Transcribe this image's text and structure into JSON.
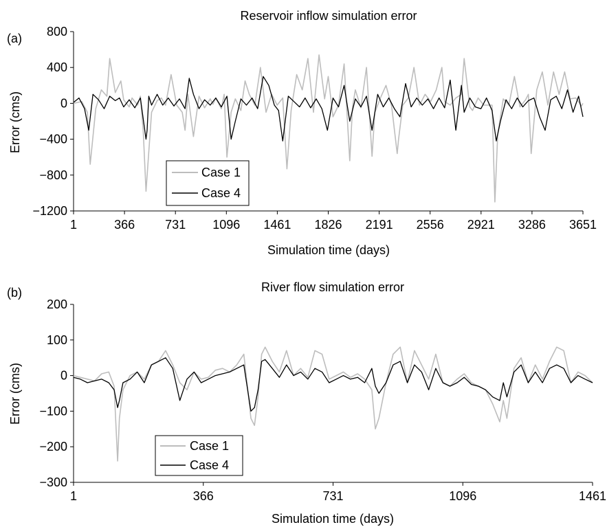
{
  "chart_data": [
    {
      "panel_label": "(a)",
      "type": "line",
      "title": "Reservoir inflow simulation error",
      "xlabel": "Simulation time (days)",
      "ylabel": "Error (cms)",
      "xlim": [
        1,
        3651
      ],
      "ylim": [
        -1200,
        800
      ],
      "xticks": [
        1,
        366,
        731,
        1096,
        1461,
        1826,
        2191,
        2556,
        2921,
        3286,
        3651
      ],
      "yticks": [
        -1200,
        -800,
        -400,
        0,
        400,
        800
      ],
      "ytick_labels": [
        "−1200",
        "−800",
        "−400",
        "0",
        "400",
        "800"
      ],
      "legend": {
        "position": "lower-left",
        "entries": [
          "Case 1",
          "Case 4"
        ]
      },
      "colors": {
        "case1": "#bdbdbd",
        "case4": "#000000"
      },
      "series": [
        {
          "name": "Case 1",
          "x": [
            1,
            60,
            100,
            120,
            160,
            200,
            240,
            260,
            300,
            340,
            360,
            400,
            420,
            460,
            480,
            500,
            520,
            560,
            600,
            630,
            660,
            700,
            740,
            780,
            800,
            820,
            860,
            900,
            940,
            980,
            1000,
            1020,
            1060,
            1080,
            1100,
            1130,
            1160,
            1200,
            1230,
            1260,
            1300,
            1340,
            1380,
            1420,
            1460,
            1500,
            1530,
            1560,
            1600,
            1640,
            1680,
            1720,
            1760,
            1800,
            1826,
            1860,
            1900,
            1940,
            1980,
            2000,
            2020,
            2060,
            2100,
            2140,
            2160,
            2180,
            2200,
            2240,
            2280,
            2320,
            2330,
            2360,
            2400,
            2440,
            2480,
            2520,
            2560,
            2600,
            2640,
            2660,
            2700,
            2740,
            2780,
            2800,
            2840,
            2860,
            2900,
            2940,
            3000,
            3020,
            3040,
            3080,
            3120,
            3160,
            3200,
            3240,
            3260,
            3280,
            3320,
            3360,
            3400,
            3440,
            3480,
            3520,
            3560,
            3600,
            3640,
            3651
          ],
          "y": [
            0,
            20,
            -100,
            -680,
            -60,
            150,
            80,
            500,
            120,
            250,
            40,
            -40,
            60,
            -20,
            80,
            -300,
            -980,
            -100,
            30,
            60,
            -20,
            320,
            -20,
            -100,
            -300,
            100,
            -370,
            80,
            -50,
            50,
            -10,
            60,
            -60,
            100,
            -600,
            -100,
            50,
            -80,
            250,
            100,
            -20,
            400,
            -100,
            100,
            -20,
            60,
            -730,
            -80,
            320,
            150,
            500,
            -100,
            540,
            50,
            300,
            -150,
            -20,
            440,
            -640,
            -40,
            150,
            -50,
            400,
            -590,
            -100,
            -20,
            60,
            200,
            -30,
            -560,
            -400,
            -20,
            60,
            400,
            -20,
            100,
            20,
            150,
            400,
            20,
            -20,
            60,
            100,
            500,
            -40,
            -80,
            60,
            -20,
            -20,
            -1100,
            -350,
            50,
            -20,
            300,
            -40,
            40,
            100,
            -560,
            150,
            350,
            -20,
            350,
            100,
            350,
            50,
            60,
            -30,
            0
          ]
        },
        {
          "name": "Case 4",
          "x": [
            1,
            40,
            80,
            110,
            140,
            180,
            220,
            260,
            300,
            330,
            360,
            400,
            440,
            480,
            520,
            528,
            540,
            560,
            600,
            640,
            680,
            720,
            760,
            800,
            830,
            860,
            900,
            940,
            980,
            1020,
            1060,
            1100,
            1130,
            1160,
            1200,
            1240,
            1280,
            1320,
            1360,
            1400,
            1440,
            1470,
            1500,
            1540,
            1580,
            1620,
            1660,
            1700,
            1740,
            1780,
            1820,
            1860,
            1900,
            1940,
            1980,
            2020,
            2060,
            2100,
            2140,
            2180,
            2220,
            2260,
            2300,
            2340,
            2380,
            2420,
            2460,
            2500,
            2540,
            2580,
            2620,
            2660,
            2700,
            2740,
            2780,
            2800,
            2840,
            2880,
            2920,
            2960,
            3000,
            3030,
            3060,
            3100,
            3140,
            3180,
            3220,
            3260,
            3300,
            3340,
            3380,
            3420,
            3460,
            3500,
            3540,
            3580,
            3620,
            3651
          ],
          "y": [
            10,
            60,
            -60,
            -300,
            100,
            40,
            -60,
            80,
            30,
            60,
            -40,
            40,
            -50,
            60,
            -400,
            -300,
            80,
            -20,
            100,
            -20,
            60,
            -30,
            50,
            -60,
            280,
            100,
            -60,
            40,
            -20,
            60,
            -40,
            80,
            -400,
            -200,
            50,
            -20,
            60,
            -60,
            300,
            200,
            -20,
            -80,
            -420,
            80,
            20,
            -40,
            60,
            -50,
            50,
            -60,
            -300,
            60,
            -40,
            200,
            -200,
            50,
            -40,
            80,
            -300,
            100,
            -40,
            60,
            -60,
            -150,
            220,
            -40,
            60,
            -20,
            50,
            -60,
            60,
            -50,
            260,
            -300,
            200,
            -100,
            60,
            -40,
            -60,
            60,
            -80,
            -420,
            -200,
            40,
            -60,
            60,
            -40,
            30,
            60,
            -150,
            -300,
            40,
            80,
            -60,
            150,
            -100,
            80,
            -150
          ]
        }
      ]
    },
    {
      "panel_label": "(b)",
      "type": "line",
      "title": "River flow simulation error",
      "xlabel": "Simulation time (days)",
      "ylabel": "Error (cms)",
      "xlim": [
        1,
        1461
      ],
      "ylim": [
        -300,
        200
      ],
      "xticks": [
        1,
        366,
        731,
        1096,
        1461
      ],
      "yticks": [
        -300,
        -200,
        -100,
        0,
        100,
        200
      ],
      "ytick_labels": [
        "−300",
        "−200",
        "−100",
        "0",
        "100",
        "200"
      ],
      "legend": {
        "position": "lower-left",
        "entries": [
          "Case 1",
          "Case 4"
        ]
      },
      "colors": {
        "case1": "#bdbdbd",
        "case4": "#000000"
      },
      "series": [
        {
          "name": "Case 1",
          "x": [
            1,
            20,
            40,
            60,
            80,
            100,
            115,
            125,
            130,
            140,
            160,
            180,
            200,
            220,
            240,
            260,
            280,
            300,
            320,
            340,
            360,
            380,
            400,
            420,
            440,
            460,
            480,
            500,
            510,
            520,
            530,
            540,
            560,
            580,
            600,
            620,
            640,
            660,
            680,
            700,
            720,
            740,
            760,
            780,
            800,
            820,
            840,
            850,
            860,
            880,
            900,
            920,
            940,
            960,
            980,
            1000,
            1020,
            1040,
            1060,
            1080,
            1100,
            1120,
            1140,
            1160,
            1180,
            1200,
            1210,
            1220,
            1240,
            1260,
            1280,
            1300,
            1320,
            1340,
            1360,
            1380,
            1400,
            1420,
            1440,
            1461
          ],
          "y": [
            0,
            -5,
            -10,
            -15,
            5,
            10,
            -30,
            -240,
            -120,
            -40,
            0,
            10,
            -10,
            30,
            40,
            70,
            30,
            -20,
            -40,
            10,
            -10,
            -5,
            15,
            20,
            10,
            30,
            60,
            -120,
            -140,
            -60,
            60,
            80,
            40,
            10,
            70,
            0,
            20,
            -5,
            70,
            60,
            -10,
            0,
            10,
            -5,
            5,
            -10,
            -40,
            -150,
            -120,
            -20,
            60,
            80,
            -20,
            70,
            30,
            -10,
            60,
            -20,
            -30,
            -10,
            5,
            -20,
            -30,
            -40,
            -80,
            -130,
            -70,
            -120,
            20,
            50,
            -20,
            30,
            -10,
            40,
            80,
            70,
            -20,
            10,
            0,
            -20
          ]
        },
        {
          "name": "Case 4",
          "x": [
            1,
            20,
            40,
            60,
            80,
            100,
            115,
            125,
            130,
            140,
            160,
            180,
            200,
            220,
            240,
            260,
            280,
            300,
            320,
            340,
            360,
            380,
            400,
            420,
            440,
            460,
            480,
            500,
            510,
            520,
            530,
            540,
            560,
            580,
            600,
            620,
            640,
            660,
            680,
            700,
            720,
            740,
            760,
            780,
            800,
            820,
            840,
            850,
            860,
            880,
            900,
            920,
            940,
            960,
            980,
            1000,
            1020,
            1040,
            1060,
            1080,
            1100,
            1120,
            1140,
            1160,
            1180,
            1200,
            1210,
            1220,
            1240,
            1260,
            1280,
            1300,
            1320,
            1340,
            1360,
            1380,
            1400,
            1420,
            1440,
            1461
          ],
          "y": [
            -5,
            -10,
            -20,
            -15,
            -10,
            -20,
            -40,
            -90,
            -70,
            -20,
            -10,
            10,
            -20,
            30,
            40,
            50,
            20,
            -70,
            -10,
            10,
            -20,
            -10,
            0,
            5,
            10,
            20,
            30,
            -100,
            -90,
            -40,
            40,
            45,
            20,
            -5,
            30,
            0,
            10,
            -10,
            20,
            10,
            -20,
            -10,
            0,
            -10,
            -5,
            -20,
            20,
            -30,
            -50,
            -20,
            30,
            40,
            -20,
            30,
            10,
            -40,
            20,
            -20,
            -30,
            -20,
            -5,
            -25,
            -30,
            -40,
            -60,
            -70,
            -20,
            -60,
            10,
            30,
            -20,
            10,
            -20,
            20,
            30,
            20,
            -20,
            0,
            -10,
            -20
          ]
        }
      ]
    }
  ]
}
